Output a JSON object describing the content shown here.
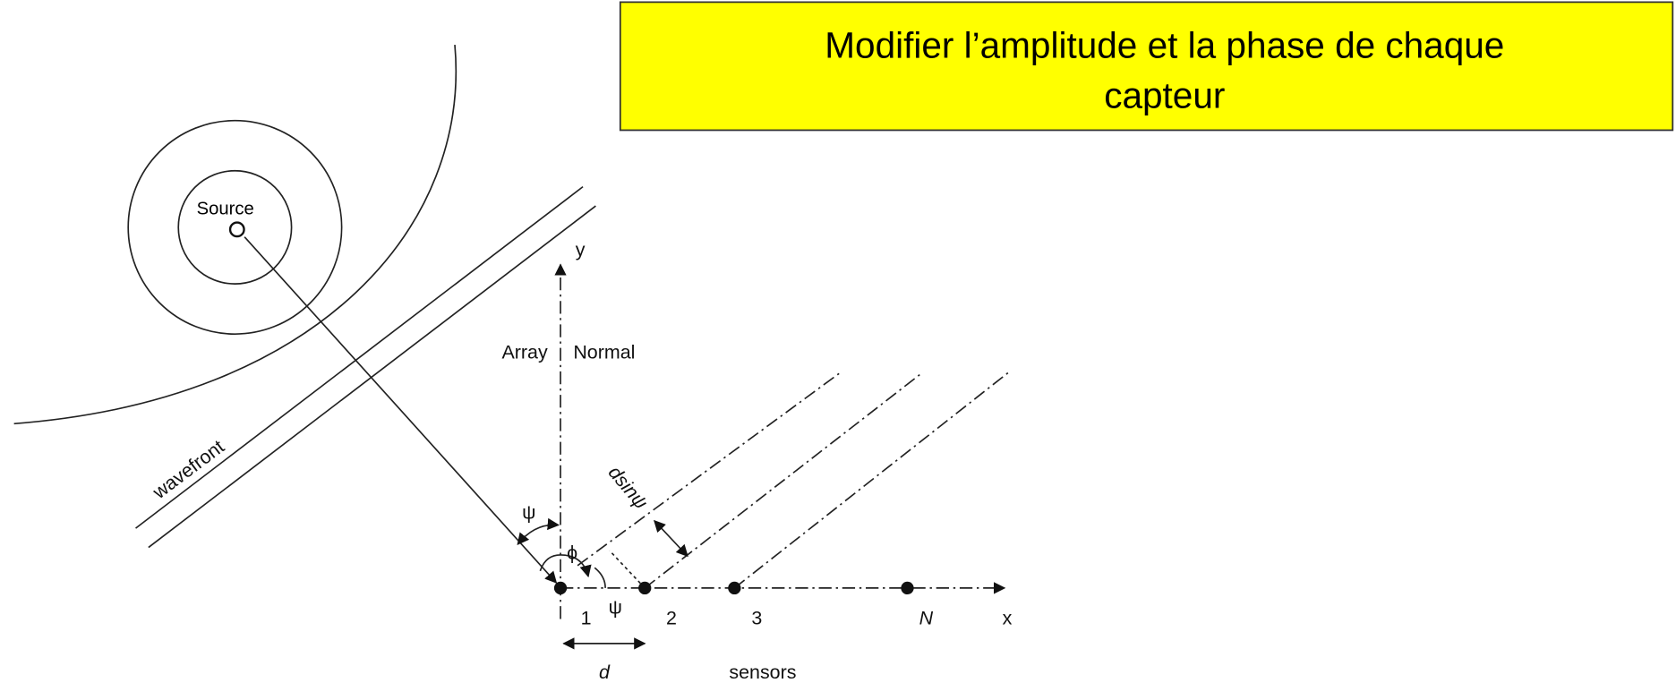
{
  "title": {
    "lines": [
      "Modifier l’amplitude et la phase de chaque",
      "capteur"
    ]
  },
  "diagram": {
    "source": "Source",
    "y_axis": "y",
    "x_axis": "x",
    "array_normal": [
      "Array",
      "Normal"
    ],
    "wavefront": "wavefront",
    "path_difference": "dsinψ",
    "angle_psi_top": "ψ",
    "angle_phi": "ϕ",
    "angle_psi_bottom": "ψ",
    "sensors": [
      "1",
      "2",
      "3",
      "N"
    ],
    "spacing": "d",
    "sensors_caption": "sensors"
  }
}
